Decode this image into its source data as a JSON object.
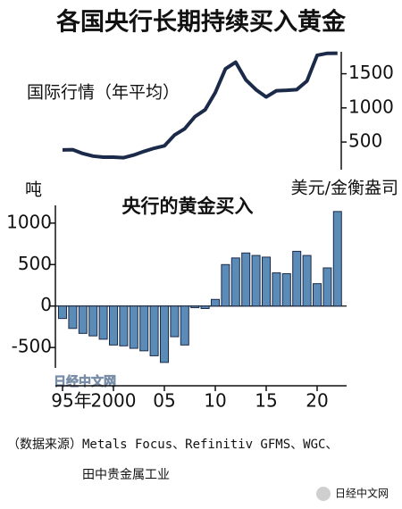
{
  "title": "各国央行长期持续买入黄金",
  "source": [
    "（数据来源）Metals Focus、Refinitiv GFMS、WGC、",
    "田中贵金属工业"
  ],
  "watermarks": [
    "日经中文网",
    "日经中文网"
  ],
  "chart_data": [
    {
      "type": "line",
      "label": "国际行情（年平均）",
      "unit": "美元/金衡盎司",
      "color": "#1c2a4a",
      "values": [
        385,
        388,
        331,
        294,
        279,
        279,
        271,
        310,
        363,
        409,
        444,
        603,
        695,
        872,
        972,
        1225,
        1572,
        1669,
        1411,
        1266,
        1160,
        1251,
        1257,
        1268,
        1393,
        1770,
        1799,
        1800
      ],
      "ylim": [
        200,
        1900
      ],
      "yticks": [
        500,
        1000,
        1500
      ]
    },
    {
      "type": "bar",
      "title": "央行的黄金买入",
      "y_label": "吨",
      "color": "#5b8cb8",
      "categories": [
        "95年",
        null,
        null,
        null,
        null,
        "2000",
        null,
        null,
        null,
        null,
        "05",
        null,
        null,
        null,
        null,
        "10",
        null,
        null,
        null,
        null,
        "15",
        null,
        null,
        null,
        null,
        "20",
        null,
        null
      ],
      "values": [
        -150,
        -270,
        -330,
        -360,
        -400,
        -470,
        -480,
        -510,
        -540,
        -600,
        -680,
        -370,
        -470,
        -20,
        -30,
        80,
        500,
        580,
        640,
        610,
        590,
        400,
        390,
        660,
        610,
        270,
        460,
        1140
      ],
      "ylim": [
        -800,
        1300
      ],
      "yticks": [
        -500,
        0,
        500,
        1000
      ]
    }
  ]
}
